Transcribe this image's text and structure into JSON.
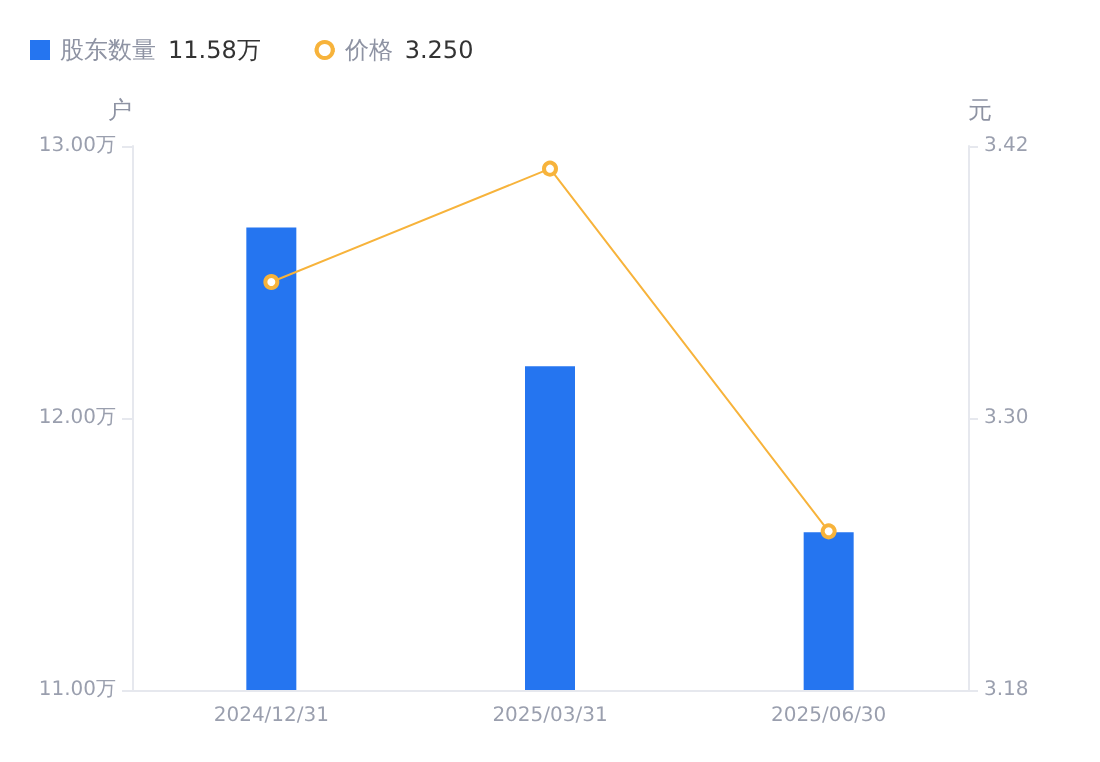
{
  "chart_data": {
    "type": "bar",
    "categories": [
      "2024/12/31",
      "2025/03/31",
      "2025/06/30"
    ],
    "series": [
      {
        "name": "股东数量",
        "color": "#2575f0",
        "values": [
          12.7,
          12.19,
          11.58
        ]
      },
      {
        "name": "价格",
        "type": "line",
        "axis": "y2",
        "color": "#f7b33b",
        "values": [
          3.36,
          3.41,
          3.25
        ]
      }
    ],
    "ylabel": "户",
    "y2label": "元",
    "ylim": [
      11,
      13
    ],
    "yticks": [
      {
        "value": 11,
        "label": "11.00万"
      },
      {
        "value": 12,
        "label": "12.00万"
      },
      {
        "value": 13,
        "label": "13.00万"
      }
    ],
    "y2lim": [
      3.18,
      3.42
    ],
    "y2ticks": [
      {
        "value": 3.18,
        "label": "3.18"
      },
      {
        "value": 3.3,
        "label": "3.30"
      },
      {
        "value": 3.42,
        "label": "3.42"
      }
    ],
    "annotations": [
      "11.58万",
      "3.250"
    ],
    "legend": "top left",
    "grid": false,
    "marker": "circle",
    "line_style": "solid"
  }
}
